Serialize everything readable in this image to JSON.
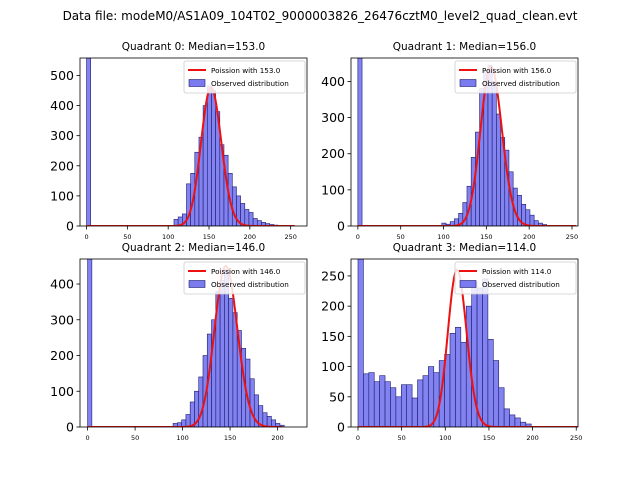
{
  "figure": {
    "suptitle": "Data file: modeM0/AS1A09_104T02_9000003826_26476cztM0_level2_quad_clean.evt"
  },
  "colors": {
    "bar_fill": "#7b7bf0",
    "bar_edge": "#1d1d6e",
    "poisson_line": "#ee1111"
  },
  "chart_data": [
    {
      "type": "bar",
      "title": "Quadrant 0: Median=153.0",
      "legend_position": "top-right",
      "legend": [
        "Poission with 153.0",
        "Observed distribution"
      ],
      "xlim": [
        -8,
        270
      ],
      "ylim": [
        0,
        558
      ],
      "xticks": [
        0,
        50,
        100,
        150,
        200,
        250
      ],
      "yticks": [
        0,
        100,
        200,
        300,
        400,
        500
      ],
      "bin_width": 5.1,
      "bin_starts": [
        0,
        107.1,
        112.2,
        117.3,
        122.4,
        127.5,
        132.6,
        137.7,
        142.8,
        147.9,
        153.0,
        158.1,
        163.2,
        168.3,
        173.4,
        178.5,
        183.6,
        188.7,
        193.8,
        198.9,
        204.0,
        209.1,
        214.2,
        219.3,
        224.4,
        229.5,
        234.6,
        239.7
      ],
      "counts": [
        558,
        22,
        30,
        40,
        140,
        175,
        245,
        295,
        400,
        465,
        450,
        380,
        270,
        235,
        175,
        130,
        100,
        75,
        55,
        45,
        25,
        18,
        12,
        8,
        5,
        3,
        2,
        1
      ],
      "poisson_mean": 153.0,
      "poisson_peak": 460
    },
    {
      "type": "bar",
      "title": "Quadrant 1: Median=156.0",
      "legend_position": "top-right",
      "legend": [
        "Poission with 156.0",
        "Observed distribution"
      ],
      "xlim": [
        -8,
        257
      ],
      "ylim": [
        0,
        465
      ],
      "xticks": [
        0,
        50,
        100,
        150,
        200,
        250
      ],
      "yticks": [
        0,
        100,
        200,
        300,
        400
      ],
      "bin_width": 4.9,
      "bin_starts": [
        0,
        98.0,
        102.9,
        107.8,
        112.7,
        117.6,
        122.5,
        127.4,
        132.3,
        137.2,
        142.1,
        147.0,
        151.9,
        156.8,
        161.7,
        166.6,
        171.5,
        176.4,
        181.3,
        186.2,
        191.1,
        196.0,
        200.9,
        205.8,
        210.7,
        215.6
      ],
      "counts": [
        465,
        8,
        5,
        12,
        20,
        35,
        65,
        110,
        190,
        260,
        380,
        430,
        445,
        400,
        310,
        245,
        210,
        150,
        105,
        85,
        60,
        45,
        30,
        15,
        8,
        4
      ],
      "poisson_mean": 156.0,
      "poisson_peak": 440
    },
    {
      "type": "bar",
      "title": "Quadrant 2: Median=146.0",
      "legend_position": "top-right",
      "legend": [
        "Poission with 146.0",
        "Observed distribution"
      ],
      "xlim": [
        -8,
        231
      ],
      "ylim": [
        0,
        470
      ],
      "xticks": [
        0,
        50,
        100,
        150,
        200
      ],
      "yticks": [
        0,
        100,
        200,
        300,
        400
      ],
      "bin_width": 4.5,
      "bin_starts": [
        0,
        90.0,
        94.5,
        99.0,
        103.5,
        108.0,
        112.5,
        117.0,
        121.5,
        126.0,
        130.5,
        135.0,
        139.5,
        144.0,
        148.5,
        153.0,
        157.5,
        162.0,
        166.5,
        171.0,
        175.5,
        180.0,
        184.5,
        189.0,
        193.5,
        198.0,
        202.5
      ],
      "counts": [
        470,
        10,
        12,
        20,
        35,
        70,
        100,
        140,
        200,
        260,
        300,
        380,
        410,
        440,
        360,
        320,
        270,
        220,
        190,
        135,
        90,
        60,
        40,
        30,
        20,
        10,
        5
      ],
      "poisson_mean": 146.0,
      "poisson_peak": 450
    },
    {
      "type": "bar",
      "title": "Quadrant 3: Median=114.0",
      "legend_position": "top-right",
      "legend": [
        "Poission with 114.0",
        "Observed distribution"
      ],
      "xlim": [
        -8,
        252
      ],
      "ylim": [
        0,
        278
      ],
      "xticks": [
        0,
        50,
        100,
        150,
        200,
        250
      ],
      "yticks": [
        0,
        50,
        100,
        150,
        200,
        250
      ],
      "bin_width": 6.2,
      "bin_starts": [
        0,
        6.2,
        12.4,
        18.6,
        24.8,
        31.0,
        37.2,
        43.4,
        49.6,
        55.8,
        62.0,
        68.2,
        74.4,
        80.6,
        86.8,
        93.0,
        99.2,
        105.4,
        111.6,
        117.8,
        124.0,
        130.2,
        136.4,
        142.6,
        148.8,
        155.0,
        161.2,
        167.4,
        173.6,
        179.8,
        186.0,
        192.2
      ],
      "counts": [
        278,
        88,
        90,
        75,
        85,
        75,
        65,
        50,
        70,
        70,
        48,
        78,
        85,
        100,
        90,
        110,
        120,
        155,
        165,
        140,
        200,
        240,
        230,
        245,
        145,
        110,
        65,
        30,
        20,
        15,
        8,
        5
      ],
      "poisson_mean": 114.0,
      "poisson_peak": 260
    }
  ]
}
